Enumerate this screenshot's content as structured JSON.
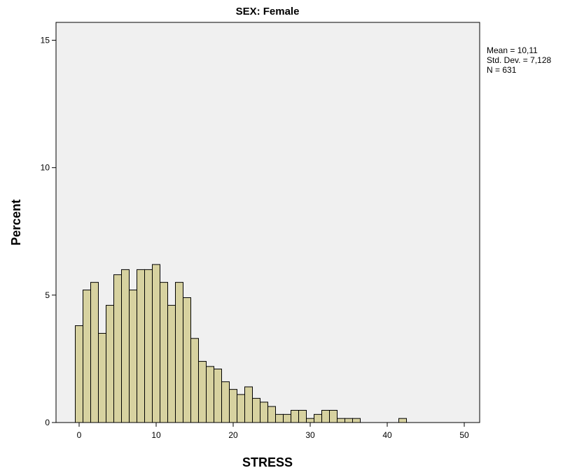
{
  "chart_data": {
    "type": "bar",
    "title": "SEX: Female",
    "xlabel": "STRESS",
    "ylabel": "Percent",
    "xlim": [
      -3,
      52
    ],
    "ylim": [
      0,
      15.7
    ],
    "xticks": [
      0,
      10,
      20,
      30,
      40,
      50
    ],
    "yticks": [
      0,
      5,
      10,
      15
    ],
    "bin_width": 1,
    "categories": [
      0,
      1,
      2,
      3,
      4,
      5,
      6,
      7,
      8,
      9,
      10,
      11,
      12,
      13,
      14,
      15,
      16,
      17,
      18,
      19,
      20,
      21,
      22,
      23,
      24,
      25,
      26,
      27,
      28,
      29,
      30,
      31,
      32,
      33,
      34,
      35,
      36,
      42
    ],
    "values": [
      3.8,
      5.2,
      5.5,
      3.5,
      4.6,
      5.8,
      6.0,
      5.2,
      6.0,
      6.0,
      6.2,
      5.5,
      4.6,
      5.5,
      4.9,
      3.3,
      2.4,
      2.2,
      2.1,
      1.6,
      1.3,
      1.1,
      1.4,
      0.95,
      0.8,
      0.63,
      0.32,
      0.32,
      0.48,
      0.48,
      0.16,
      0.32,
      0.48,
      0.48,
      0.16,
      0.16,
      0.16,
      0.16
    ],
    "stats": {
      "mean": "Mean = 10,11",
      "std": "Std. Dev. = 7,128",
      "n": "N = 631"
    },
    "colors": {
      "bar": "#d7d2a0",
      "plot_background": "#f0f0f0"
    },
    "grid": false
  }
}
